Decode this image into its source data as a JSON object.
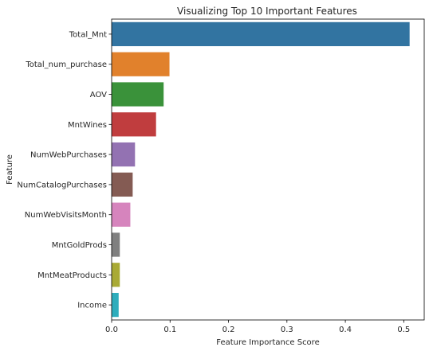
{
  "chart_data": {
    "type": "bar",
    "orientation": "horizontal",
    "title": "Visualizing Top 10 Important Features",
    "xlabel": "Feature Importance Score",
    "ylabel": "Feature",
    "xlim": [
      0,
      0.535
    ],
    "xticks": [
      0,
      0.1,
      0.2,
      0.3,
      0.4,
      0.5
    ],
    "xtick_labels": [
      "0.0",
      "0.1",
      "0.2",
      "0.3",
      "0.4",
      "0.5"
    ],
    "grid": false,
    "legend": "none",
    "categories": [
      "Total_Mnt",
      "Total_num_purchase",
      "AOV",
      "MntWines",
      "NumWebPurchases",
      "NumCatalogPurchases",
      "NumWebVisitsMonth",
      "MntGoldProds",
      "MntMeatProducts",
      "Income"
    ],
    "values": [
      0.51,
      0.099,
      0.089,
      0.076,
      0.04,
      0.036,
      0.032,
      0.014,
      0.014,
      0.012
    ],
    "colors": [
      "#3274a1",
      "#e1812c",
      "#3a923a",
      "#c03d3e",
      "#9372b2",
      "#845b53",
      "#d684bd",
      "#7f7f7f",
      "#a9aa35",
      "#2eadbc"
    ]
  }
}
